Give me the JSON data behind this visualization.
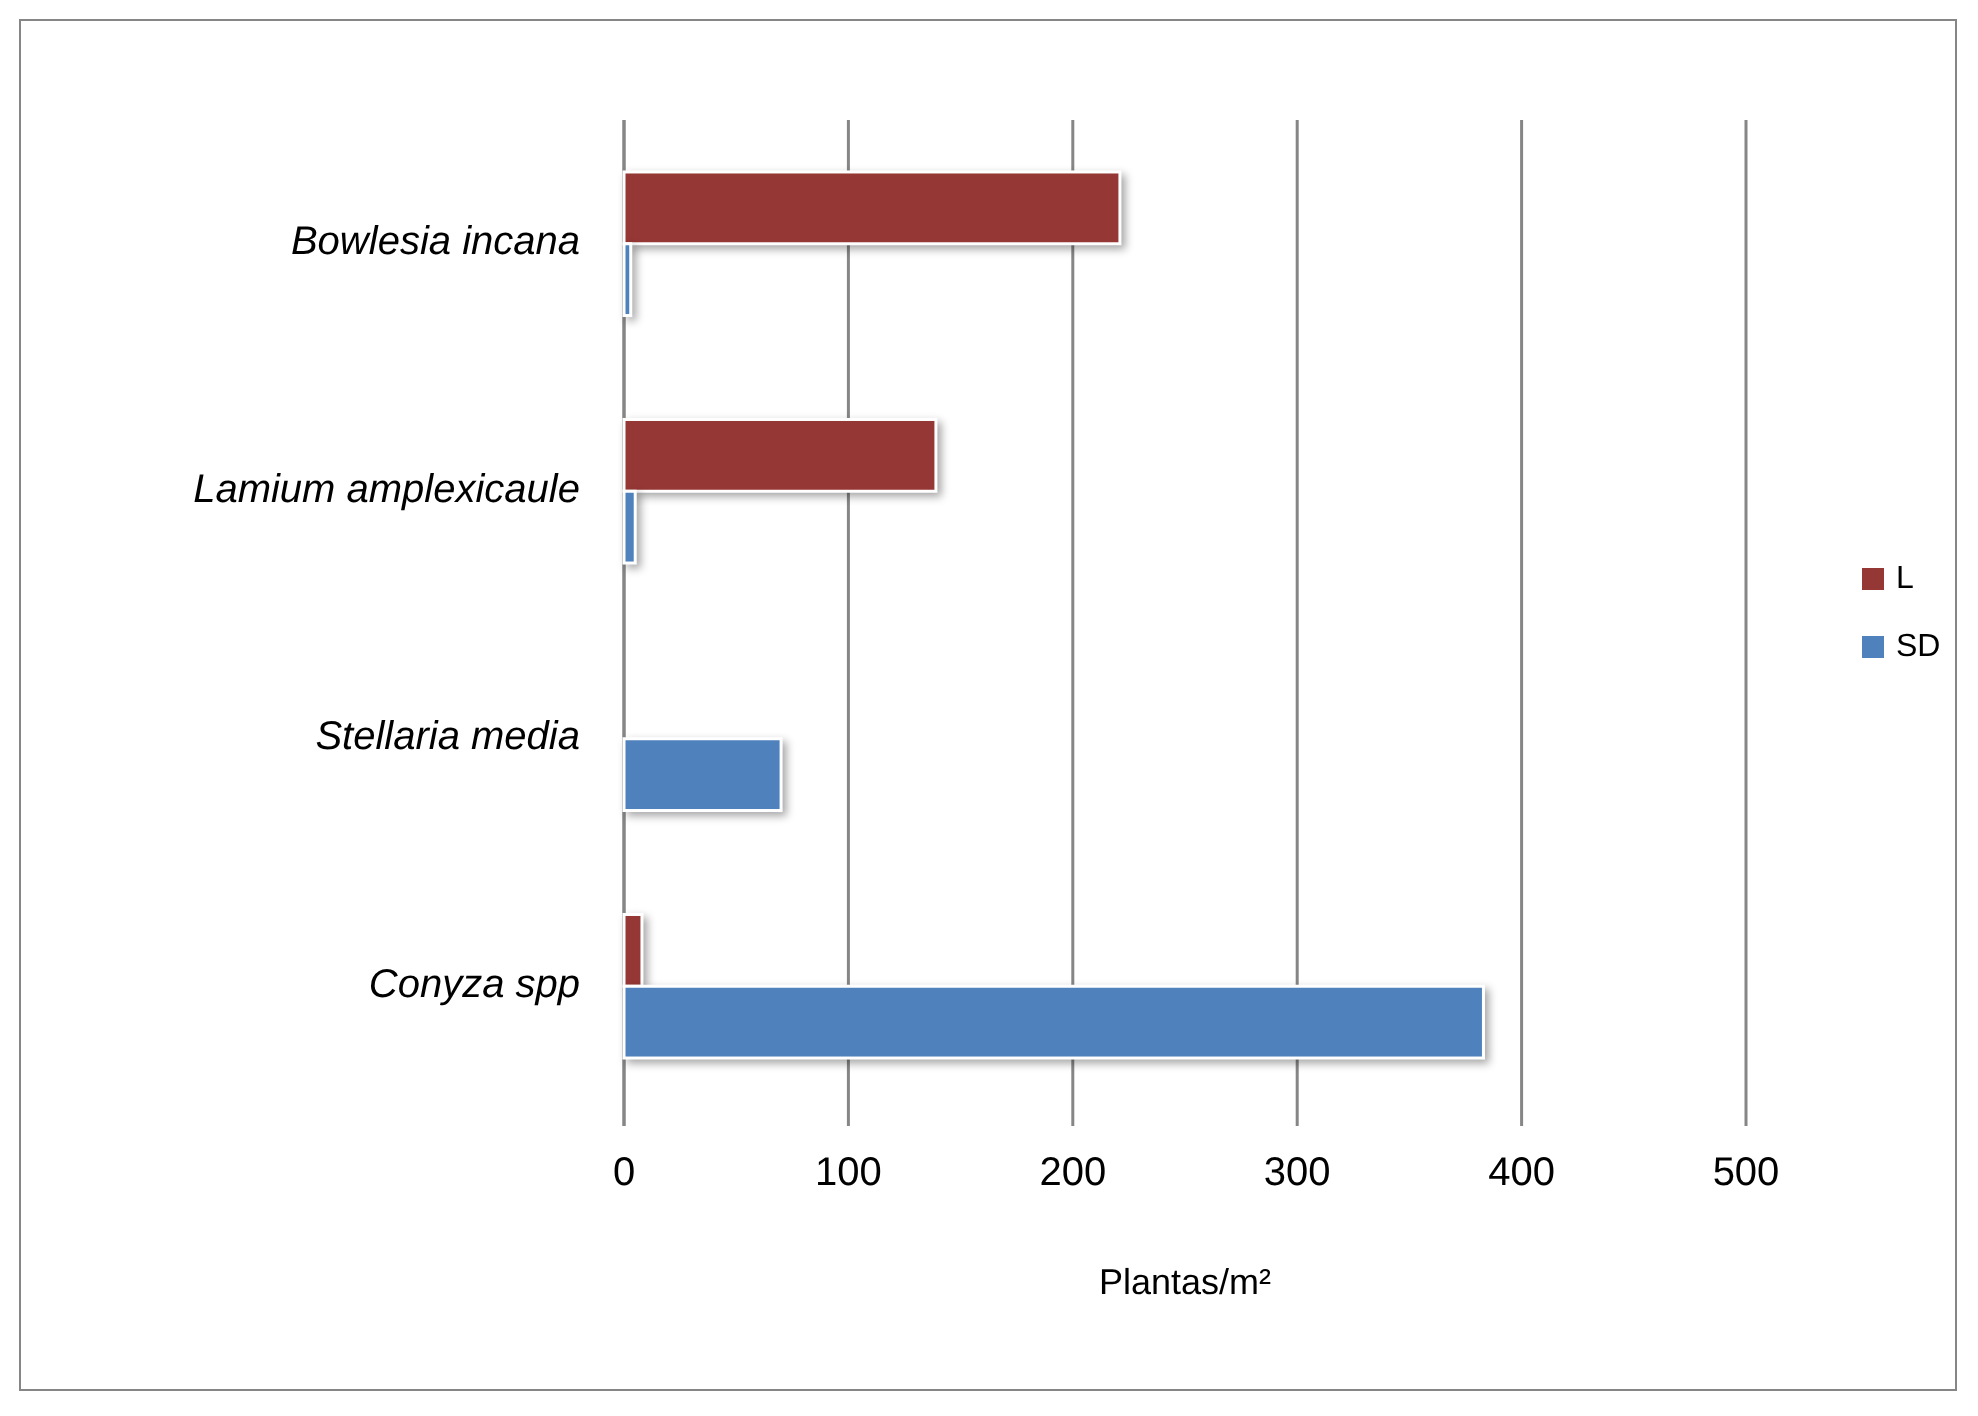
{
  "chart_data": {
    "type": "bar",
    "orientation": "horizontal",
    "xlabel": "Plantas/m²",
    "categories": [
      "Bowlesia incana",
      "Lamium amplexicaule",
      "Stellaria media",
      "Conyza spp"
    ],
    "series": [
      {
        "name": "L",
        "color": "#953735",
        "values": [
          221,
          139,
          null,
          8
        ]
      },
      {
        "name": "SD",
        "color": "#4f81bd",
        "values": [
          3,
          5,
          70,
          383
        ]
      }
    ],
    "xlim": [
      0,
      500
    ],
    "xticks": [
      0,
      100,
      200,
      300,
      400,
      500
    ],
    "grid": "x",
    "legend": "right"
  }
}
